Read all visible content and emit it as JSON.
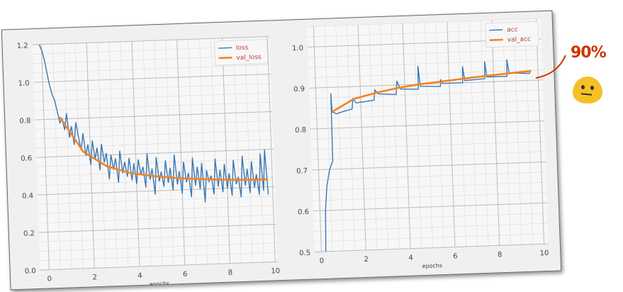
{
  "chart_data": [
    {
      "type": "line",
      "xlabel": "epochs",
      "ylabel": "",
      "xlim": [
        -0.4,
        10.1
      ],
      "ylim": [
        0,
        1.2
      ],
      "xticks": [
        "0",
        "2",
        "4",
        "6",
        "8",
        "10"
      ],
      "yticks": [
        "0.0",
        "0.2",
        "0.4",
        "0.6",
        "0.8",
        "1.0",
        "1.2"
      ],
      "grid": true,
      "legend": "top-right",
      "series": [
        {
          "name": "loss",
          "color": "#3a78b5",
          "x": [
            -0.1,
            0,
            0.1,
            0.2,
            0.3,
            0.4,
            0.5,
            0.6,
            0.7,
            0.8,
            0.9,
            1,
            1.1,
            1.2,
            1.3,
            1.4,
            1.5,
            1.6,
            1.7,
            1.8,
            1.9,
            2,
            2.1,
            2.2,
            2.3,
            2.4,
            2.5,
            2.6,
            2.7,
            2.8,
            2.9,
            3,
            3.1,
            3.2,
            3.3,
            3.4,
            3.5,
            3.6,
            3.7,
            3.8,
            3.9,
            4,
            4.1,
            4.2,
            4.3,
            4.4,
            4.5,
            4.6,
            4.7,
            4.8,
            4.9,
            5,
            5.1,
            5.2,
            5.3,
            5.4,
            5.5,
            5.6,
            5.7,
            5.8,
            5.9,
            6,
            6.1,
            6.2,
            6.3,
            6.4,
            6.5,
            6.6,
            6.7,
            6.8,
            6.9,
            7,
            7.1,
            7.2,
            7.3,
            7.4,
            7.5,
            7.6,
            7.7,
            7.8,
            7.9,
            8,
            8.1,
            8.2,
            8.3,
            8.4,
            8.5,
            8.6,
            8.7,
            8.8,
            8.9,
            9,
            9.1,
            9.2,
            9.3,
            9.4,
            9.5,
            9.6,
            9.7,
            9.8
          ],
          "y": [
            1.2,
            1.17,
            1.12,
            1.05,
            0.98,
            0.93,
            0.9,
            0.84,
            0.78,
            0.8,
            0.74,
            0.83,
            0.7,
            0.76,
            0.66,
            0.78,
            0.7,
            0.63,
            0.72,
            0.6,
            0.66,
            0.55,
            0.68,
            0.58,
            0.64,
            0.52,
            0.66,
            0.56,
            0.61,
            0.47,
            0.6,
            0.52,
            0.58,
            0.45,
            0.62,
            0.5,
            0.56,
            0.48,
            0.58,
            0.46,
            0.55,
            0.44,
            0.57,
            0.49,
            0.53,
            0.42,
            0.6,
            0.46,
            0.52,
            0.38,
            0.58,
            0.45,
            0.5,
            0.42,
            0.56,
            0.44,
            0.52,
            0.4,
            0.59,
            0.43,
            0.5,
            0.38,
            0.55,
            0.44,
            0.49,
            0.36,
            0.57,
            0.42,
            0.52,
            0.4,
            0.54,
            0.33,
            0.5,
            0.44,
            0.47,
            0.37,
            0.56,
            0.41,
            0.5,
            0.38,
            0.53,
            0.4,
            0.48,
            0.36,
            0.55,
            0.42,
            0.46,
            0.35,
            0.57,
            0.41,
            0.5,
            0.37,
            0.54,
            0.4,
            0.47,
            0.36,
            0.58,
            0.38,
            0.6,
            0.36
          ]
        },
        {
          "name": "val_loss",
          "color": "#f58220",
          "x": [
            0.7,
            1.7,
            2.7,
            3.7,
            4.7,
            5.7,
            6.7,
            7.7,
            8.7,
            9.8
          ],
          "y": [
            0.81,
            0.62,
            0.54,
            0.5,
            0.48,
            0.465,
            0.455,
            0.447,
            0.442,
            0.44
          ]
        }
      ]
    },
    {
      "type": "line",
      "xlabel": "epochs",
      "ylabel": "",
      "xlim": [
        -0.3,
        10.2
      ],
      "ylim": [
        0.5,
        1.05
      ],
      "xticks": [
        "0",
        "2",
        "4",
        "6",
        "8",
        "10"
      ],
      "yticks": [
        "0.5",
        "0.6",
        "0.7",
        "0.8",
        "0.9",
        "1.0"
      ],
      "grid": true,
      "legend": "top-right",
      "series": [
        {
          "name": "acc",
          "color": "#3a78b5",
          "x": [
            0.2,
            0.25,
            0.35,
            0.5,
            0.65,
            0.67,
            0.7,
            0.9,
            1.2,
            1.6,
            1.65,
            1.8,
            2.6,
            2.65,
            2.8,
            3.6,
            3.65,
            3.8,
            4.6,
            4.62,
            4.7,
            5.6,
            5.62,
            5.7,
            6.6,
            6.62,
            6.7,
            7.6,
            7.62,
            7.7,
            8.6,
            8.62,
            8.7,
            9.6,
            9.65
          ],
          "y": [
            0.5,
            0.6,
            0.66,
            0.7,
            0.72,
            0.885,
            0.84,
            0.835,
            0.84,
            0.845,
            0.87,
            0.86,
            0.865,
            0.89,
            0.88,
            0.877,
            0.91,
            0.89,
            0.888,
            0.945,
            0.895,
            0.893,
            0.91,
            0.9,
            0.9,
            0.94,
            0.905,
            0.908,
            0.95,
            0.912,
            0.912,
            0.953,
            0.92,
            0.917,
            0.92
          ]
        },
        {
          "name": "val_acc",
          "color": "#f58220",
          "x": [
            0.7,
            1.7,
            2.7,
            3.7,
            4.7,
            5.7,
            6.7,
            7.7,
            8.7,
            9.7
          ],
          "y": [
            0.84,
            0.87,
            0.883,
            0.893,
            0.9,
            0.905,
            0.91,
            0.915,
            0.919,
            0.923
          ]
        }
      ]
    }
  ],
  "annotation": {
    "text": "90%",
    "color": "#cc3300",
    "emoji": "neutral-face-emoji"
  }
}
